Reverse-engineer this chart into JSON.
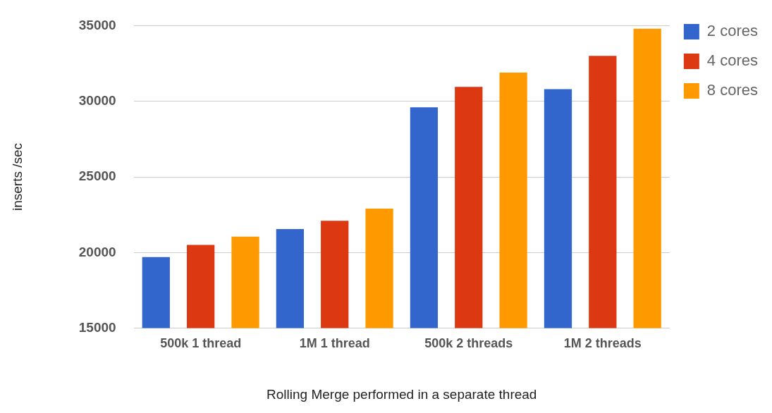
{
  "chart_data": {
    "type": "bar",
    "categories": [
      "500k 1 thread",
      "1M 1 thread",
      "500k 2 threads",
      "1M 2 threads"
    ],
    "series": [
      {
        "name": "2 cores",
        "color": "#3366cc",
        "values": [
          19700,
          21550,
          29600,
          30800
        ]
      },
      {
        "name": "4 cores",
        "color": "#dc3912",
        "values": [
          20500,
          22100,
          30950,
          33000
        ]
      },
      {
        "name": "8 cores",
        "color": "#ff9900",
        "values": [
          21050,
          22900,
          31900,
          34800
        ]
      }
    ],
    "xlabel": "Rolling Merge performed in a separate thread",
    "ylabel": "inserts /sec",
    "ylim": [
      15000,
      35000
    ],
    "yticks": [
      15000,
      20000,
      25000,
      30000,
      35000
    ],
    "grid": "y",
    "legend": "right"
  }
}
